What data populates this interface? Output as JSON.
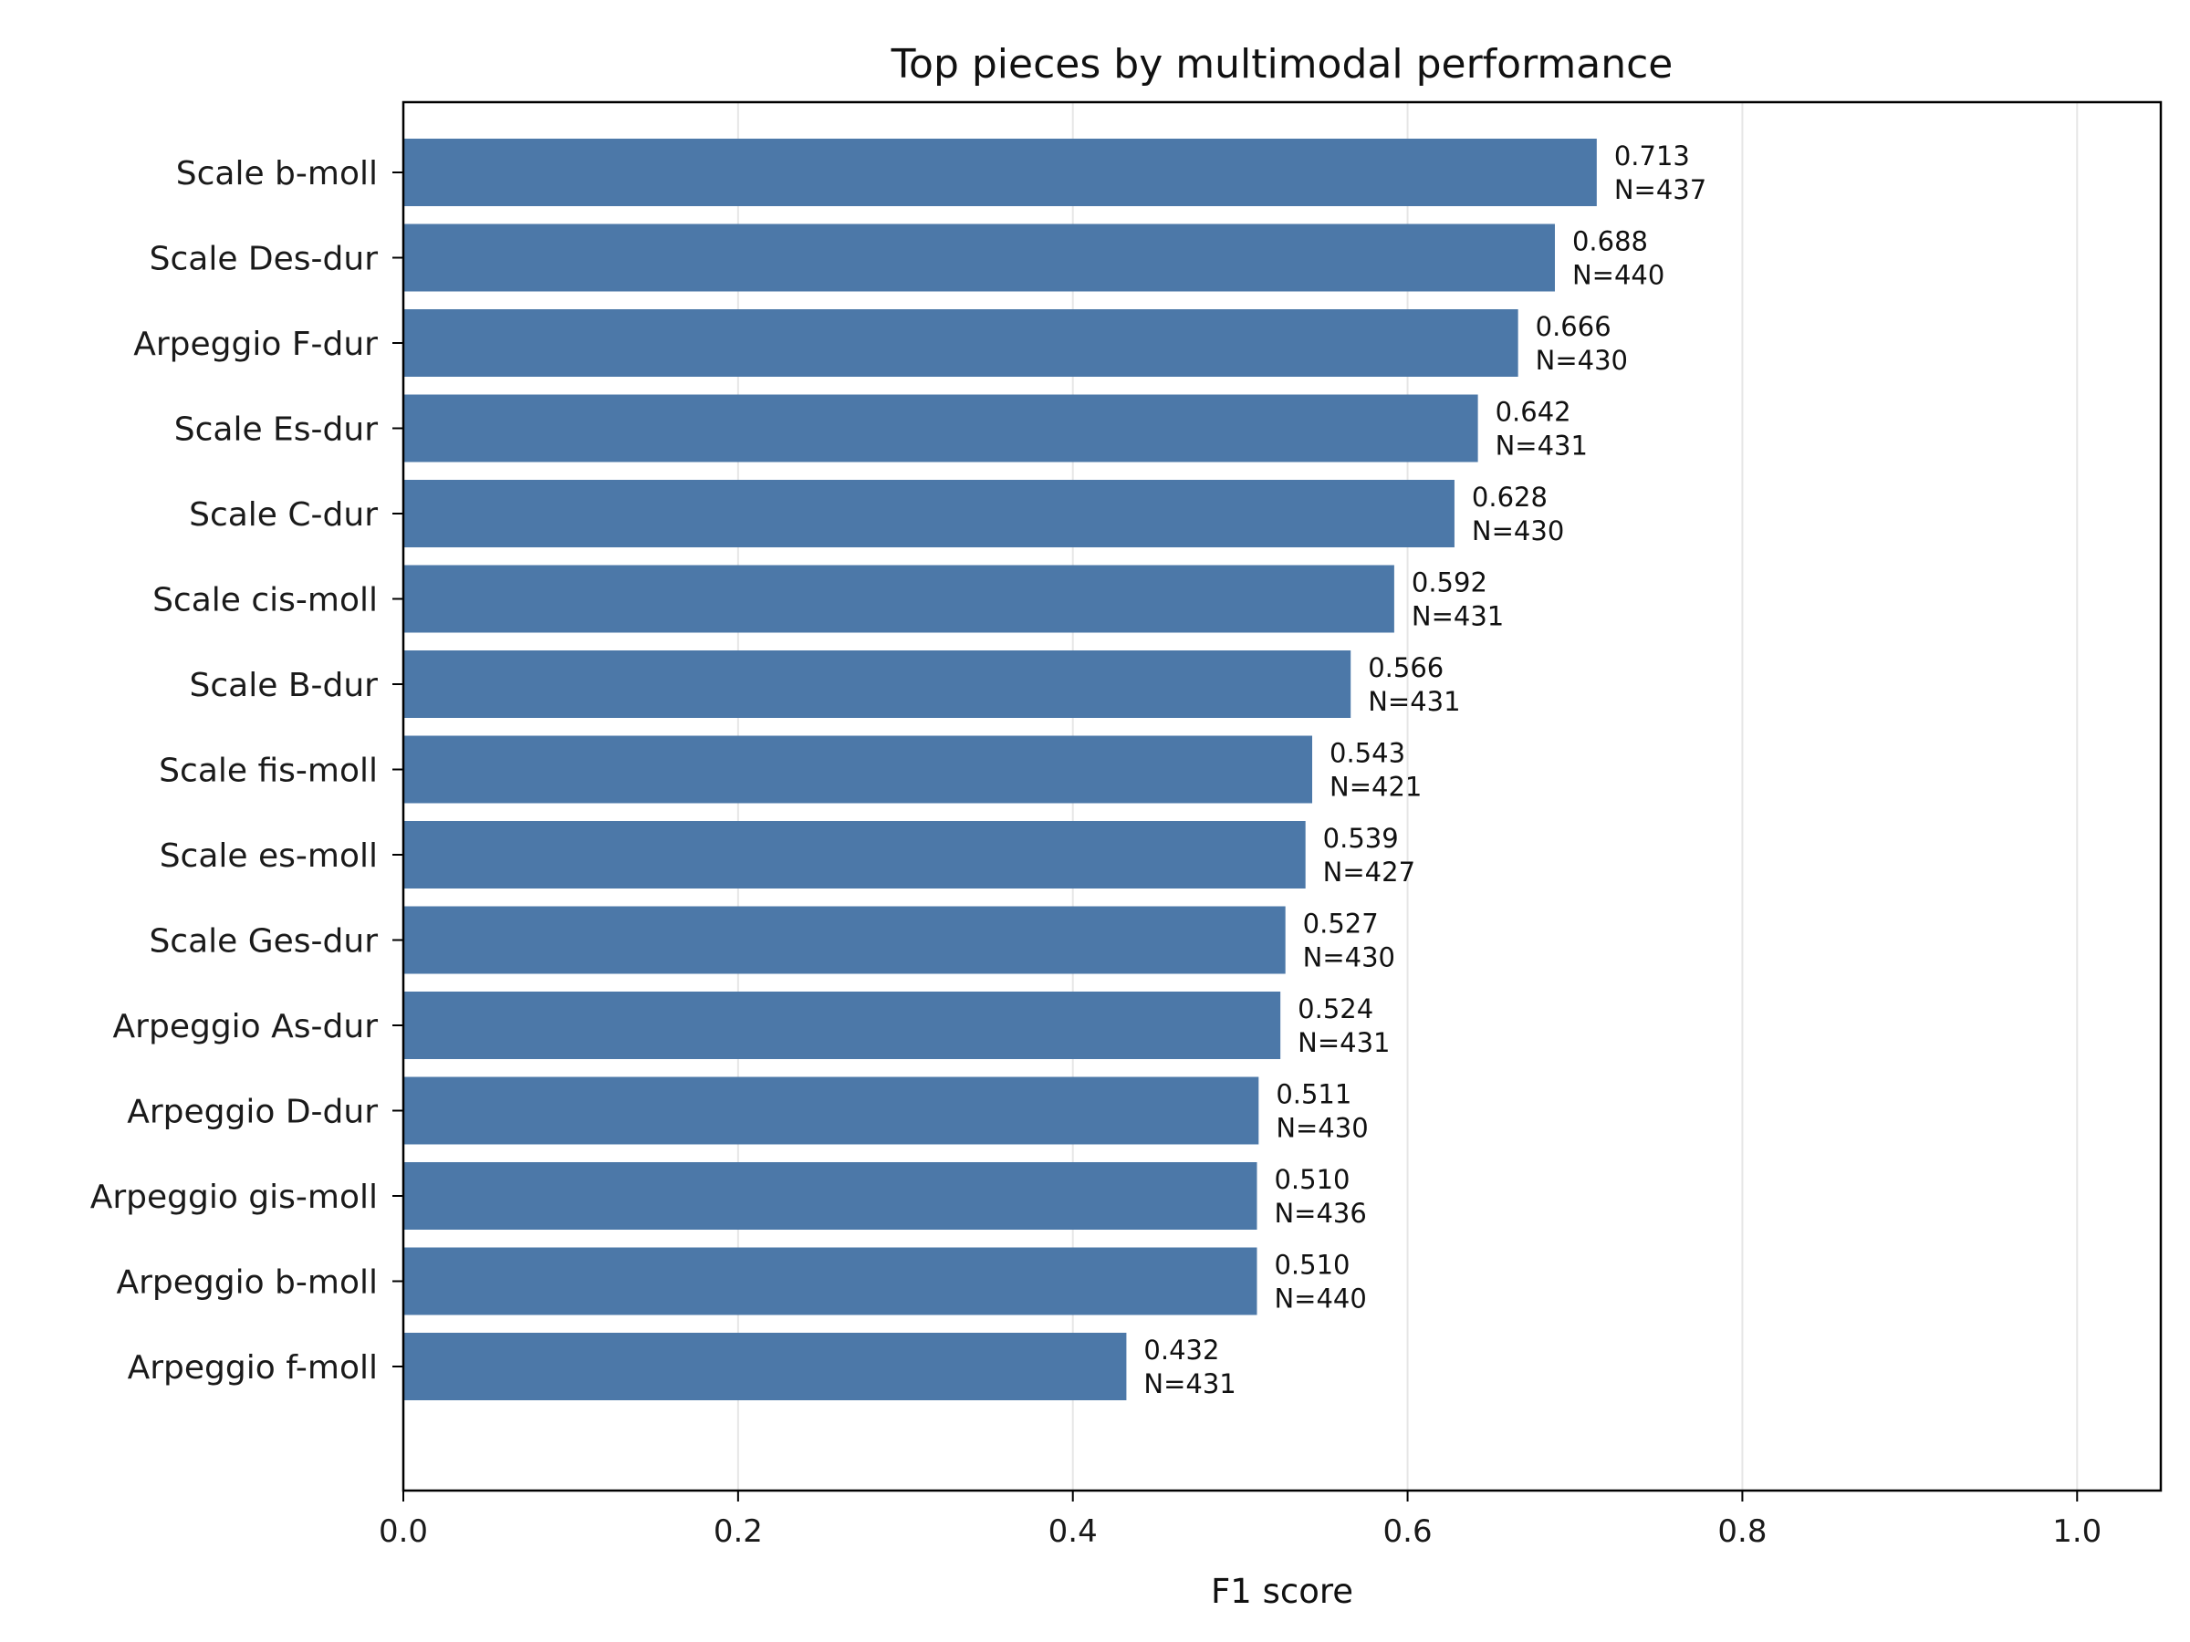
{
  "chart_data": {
    "type": "bar",
    "orientation": "horizontal",
    "title": "Top pieces by multimodal performance",
    "xlabel": "F1 score",
    "ylabel": "",
    "xlim": [
      0,
      1.05
    ],
    "xticks": [
      "0.0",
      "0.2",
      "0.4",
      "0.6",
      "0.8",
      "1.0"
    ],
    "grid": "x",
    "bar_color": "#4c78a8",
    "categories": [
      "Scale b-moll",
      "Scale Des-dur",
      "Arpeggio F-dur",
      "Scale Es-dur",
      "Scale C-dur",
      "Scale cis-moll",
      "Scale B-dur",
      "Scale fis-moll",
      "Scale es-moll",
      "Scale Ges-dur",
      "Arpeggio As-dur",
      "Arpeggio D-dur",
      "Arpeggio gis-moll",
      "Arpeggio b-moll",
      "Arpeggio f-moll"
    ],
    "values": [
      0.713,
      0.688,
      0.666,
      0.642,
      0.628,
      0.592,
      0.566,
      0.543,
      0.539,
      0.527,
      0.524,
      0.511,
      0.51,
      0.51,
      0.432
    ],
    "value_labels": [
      "0.713",
      "0.688",
      "0.666",
      "0.642",
      "0.628",
      "0.592",
      "0.566",
      "0.543",
      "0.539",
      "0.527",
      "0.524",
      "0.511",
      "0.510",
      "0.510",
      "0.432"
    ],
    "count_labels": [
      "N=437",
      "N=440",
      "N=430",
      "N=431",
      "N=430",
      "N=431",
      "N=431",
      "N=421",
      "N=427",
      "N=430",
      "N=431",
      "N=430",
      "N=436",
      "N=440",
      "N=431"
    ]
  }
}
